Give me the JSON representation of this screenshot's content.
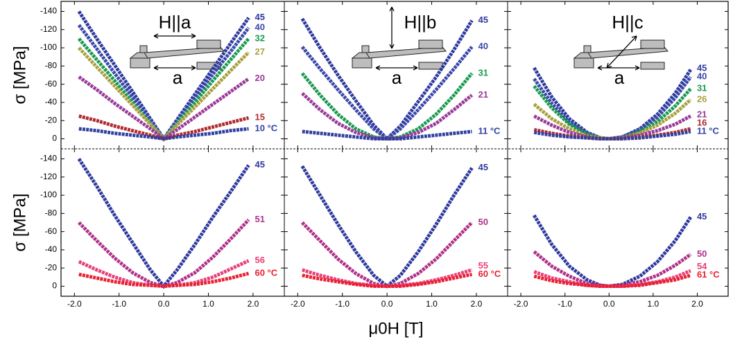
{
  "chart_data": [
    {
      "type": "line",
      "ylabel": "σ [MPa]",
      "annotations": [
        "H||a",
        "a"
      ],
      "xlim": [
        -2.3,
        2.7
      ],
      "ylim": [
        11,
        -151
      ],
      "xticks": [
        {
          "value": -2,
          "label": "-2.0"
        },
        {
          "value": -1,
          "label": "-1.0"
        },
        {
          "value": 0,
          "label": "0.0"
        },
        {
          "value": 1,
          "label": "1.0"
        },
        {
          "value": 2,
          "label": "2.0"
        }
      ],
      "yticks": [
        0,
        -20,
        -40,
        -60,
        -80,
        -100,
        -120,
        -140
      ],
      "show_xtick_labels": false,
      "show_ytick_labels": true,
      "x": [
        -1.9,
        -1.5,
        -1.1,
        -0.7,
        -0.3,
        0,
        0.3,
        0.7,
        1.1,
        1.5,
        1.9
      ],
      "series": [
        {
          "name": "45",
          "color": "#2e3a9e",
          "values": [
            -140,
            -110,
            -81,
            -52,
            -22,
            0,
            -21,
            -49,
            -77,
            -105,
            -133
          ]
        },
        {
          "name": "40",
          "color": "#3a48aa",
          "values": [
            -125,
            -99,
            -72,
            -46,
            -20,
            0,
            -19,
            -45,
            -71,
            -96,
            -122
          ]
        },
        {
          "name": "32",
          "color": "#1a9a50",
          "values": [
            -110,
            -87,
            -64,
            -40,
            -17,
            0,
            -17,
            -40,
            -64,
            -87,
            -110
          ]
        },
        {
          "name": "27",
          "color": "#a8a040",
          "values": [
            -100,
            -79,
            -58,
            -37,
            -16,
            0,
            -15,
            -35,
            -55,
            -75,
            -95
          ]
        },
        {
          "name": "20",
          "color": "#9a3a9a",
          "values": [
            -68,
            -54,
            -39,
            -25,
            -11,
            0,
            -10,
            -24,
            -38,
            -52,
            -66
          ]
        },
        {
          "name": "15",
          "color": "#b02a30",
          "values": [
            -25,
            -20,
            -14,
            -9,
            -4,
            0,
            -4,
            -8,
            -13,
            -18,
            -23
          ]
        },
        {
          "name": "10 °C",
          "color": "#3040a0",
          "values": [
            -11,
            -9,
            -6,
            -4,
            -2,
            0,
            -2,
            -4,
            -6,
            -9,
            -11
          ]
        }
      ]
    },
    {
      "type": "line",
      "annotations": [
        "H||b",
        "a"
      ],
      "xlim": [
        -2.3,
        2.7
      ],
      "ylim": [
        11,
        -151
      ],
      "xticks": [
        {
          "value": -2,
          "label": "-2.0"
        },
        {
          "value": -1,
          "label": "-1.0"
        },
        {
          "value": 0,
          "label": "0.0"
        },
        {
          "value": 1,
          "label": "1.0"
        },
        {
          "value": 2,
          "label": "2.0"
        }
      ],
      "yticks": [
        0,
        -20,
        -40,
        -60,
        -80,
        -100,
        -120,
        -140
      ],
      "show_xtick_labels": false,
      "show_ytick_labels": false,
      "x": [
        -1.9,
        -1.5,
        -1.1,
        -0.7,
        -0.3,
        0,
        0.3,
        0.7,
        1.1,
        1.5,
        1.9
      ],
      "series": [
        {
          "name": "45",
          "color": "#2e3a9e",
          "values": [
            -132,
            -100,
            -70,
            -42,
            -15,
            0,
            -14,
            -41,
            -68,
            -98,
            -130
          ]
        },
        {
          "name": "40",
          "color": "#3a48aa",
          "values": [
            -101,
            -77,
            -54,
            -32,
            -11,
            0,
            -11,
            -32,
            -54,
            -77,
            -101
          ]
        },
        {
          "name": "31",
          "color": "#1a9a50",
          "values": [
            -72,
            -48,
            -27,
            -11,
            -2,
            0,
            -2,
            -11,
            -27,
            -48,
            -72
          ]
        },
        {
          "name": "21",
          "color": "#9a3a9a",
          "values": [
            -50,
            -32,
            -17,
            -7,
            -1,
            0,
            -1,
            -7,
            -17,
            -32,
            -48
          ]
        },
        {
          "name": "11 °C",
          "color": "#3040a0",
          "values": [
            -8,
            -6,
            -4,
            -2,
            0,
            0,
            0,
            -2,
            -4,
            -6,
            -8
          ]
        }
      ]
    },
    {
      "type": "line",
      "annotations": [
        "H||c",
        "a"
      ],
      "xlim": [
        -2.3,
        2.7
      ],
      "ylim": [
        11,
        -151
      ],
      "xticks": [
        {
          "value": -2,
          "label": "-2.0"
        },
        {
          "value": -1,
          "label": "-1.0"
        },
        {
          "value": 0,
          "label": "0.0"
        },
        {
          "value": 1,
          "label": "1.0"
        },
        {
          "value": 2,
          "label": "2.0"
        }
      ],
      "yticks": [
        0,
        -20,
        -40,
        -60,
        -80,
        -100,
        -120,
        -140
      ],
      "show_xtick_labels": false,
      "show_ytick_labels": false,
      "x": [
        -1.7,
        -1.3,
        -0.9,
        -0.5,
        -0.2,
        0,
        0.3,
        0.7,
        1.1,
        1.5,
        1.85
      ],
      "series": [
        {
          "name": "45",
          "color": "#2e3a9e",
          "values": [
            -78,
            -46,
            -22,
            -7,
            -1,
            0,
            -2,
            -11,
            -27,
            -50,
            -76
          ]
        },
        {
          "name": "40",
          "color": "#3a48aa",
          "values": [
            -66,
            -39,
            -18,
            -6,
            -1,
            0,
            -2,
            -10,
            -24,
            -45,
            -68
          ]
        },
        {
          "name": "31",
          "color": "#1a9a50",
          "values": [
            -58,
            -34,
            -16,
            -5,
            -1,
            0,
            -1,
            -8,
            -19,
            -36,
            -55
          ]
        },
        {
          "name": "26",
          "color": "#a8a040",
          "values": [
            -38,
            -22,
            -11,
            -3,
            -1,
            0,
            -1,
            -6,
            -15,
            -28,
            -43
          ]
        },
        {
          "name": "21",
          "color": "#9a3a9a",
          "values": [
            -25,
            -15,
            -7,
            -2,
            0,
            0,
            -1,
            -4,
            -9,
            -16,
            -25
          ]
        },
        {
          "name": "16",
          "color": "#b02a30",
          "values": [
            -10,
            -6,
            -3,
            -1,
            0,
            0,
            0,
            -2,
            -4,
            -7,
            -11
          ]
        },
        {
          "name": "11 °C",
          "color": "#3040a0",
          "values": [
            -7,
            -4,
            -2,
            -1,
            0,
            0,
            0,
            -1,
            -3,
            -5,
            -8
          ]
        }
      ]
    },
    {
      "type": "line",
      "ylabel": "σ [MPa]",
      "xlim": [
        -2.3,
        2.7
      ],
      "ylim": [
        11,
        -151
      ],
      "xticks": [
        {
          "value": -2,
          "label": "-2.0"
        },
        {
          "value": -1,
          "label": "-1.0"
        },
        {
          "value": 0,
          "label": "0.0"
        },
        {
          "value": 1,
          "label": "1.0"
        },
        {
          "value": 2,
          "label": "2.0"
        }
      ],
      "yticks": [
        0,
        -20,
        -40,
        -60,
        -80,
        -100,
        -120,
        -140
      ],
      "show_xtick_labels": true,
      "show_ytick_labels": true,
      "x": [
        -1.9,
        -1.5,
        -1.1,
        -0.7,
        -0.3,
        0,
        0.3,
        0.7,
        1.1,
        1.5,
        1.9
      ],
      "series": [
        {
          "name": "45",
          "color": "#2e3a9e",
          "values": [
            -140,
            -110,
            -78,
            -48,
            -18,
            0,
            -18,
            -46,
            -76,
            -104,
            -133
          ]
        },
        {
          "name": "51",
          "color": "#b0308a",
          "values": [
            -70,
            -50,
            -31,
            -15,
            -4,
            0,
            -4,
            -15,
            -32,
            -52,
            -73
          ]
        },
        {
          "name": "56",
          "color": "#e8407a",
          "values": [
            -27,
            -18,
            -10,
            -4,
            -1,
            0,
            -1,
            -4,
            -10,
            -19,
            -28
          ]
        },
        {
          "name": "60 °C",
          "color": "#e82030",
          "values": [
            -13,
            -9,
            -5,
            -2,
            -1,
            0,
            -1,
            -2,
            -5,
            -9,
            -14
          ]
        }
      ]
    },
    {
      "type": "line",
      "xlabel": "μ0H [T]",
      "xlim": [
        -2.3,
        2.7
      ],
      "ylim": [
        11,
        -151
      ],
      "xticks": [
        {
          "value": -2,
          "label": "-2.0"
        },
        {
          "value": -1,
          "label": "-1.0"
        },
        {
          "value": 0,
          "label": "0.0"
        },
        {
          "value": 1,
          "label": "1.0"
        },
        {
          "value": 2,
          "label": "2.0"
        }
      ],
      "yticks": [
        0,
        -20,
        -40,
        -60,
        -80,
        -100,
        -120,
        -140
      ],
      "show_xtick_labels": true,
      "show_ytick_labels": false,
      "x": [
        -1.9,
        -1.5,
        -1.1,
        -0.7,
        -0.3,
        0,
        0.3,
        0.7,
        1.1,
        1.5,
        1.9
      ],
      "series": [
        {
          "name": "45",
          "color": "#2e3a9e",
          "values": [
            -132,
            -100,
            -68,
            -38,
            -12,
            0,
            -12,
            -38,
            -68,
            -100,
            -130
          ]
        },
        {
          "name": "50",
          "color": "#b0308a",
          "values": [
            -70,
            -50,
            -30,
            -14,
            -3,
            0,
            -3,
            -14,
            -30,
            -50,
            -70
          ]
        },
        {
          "name": "55",
          "color": "#e8407a",
          "values": [
            -18,
            -12,
            -7,
            -3,
            -1,
            0,
            -1,
            -3,
            -7,
            -12,
            -18
          ]
        },
        {
          "name": "60 °C",
          "color": "#e82030",
          "values": [
            -12,
            -8,
            -5,
            -2,
            0,
            0,
            0,
            -2,
            -5,
            -9,
            -13
          ]
        }
      ]
    },
    {
      "type": "line",
      "xlim": [
        -2.3,
        2.7
      ],
      "ylim": [
        11,
        -151
      ],
      "xticks": [
        {
          "value": -2,
          "label": "-2.0"
        },
        {
          "value": -1,
          "label": "-1.0"
        },
        {
          "value": 0,
          "label": "0.0"
        },
        {
          "value": 1,
          "label": "1.0"
        },
        {
          "value": 2,
          "label": "2.0"
        }
      ],
      "yticks": [
        0,
        -20,
        -40,
        -60,
        -80,
        -100,
        -120,
        -140
      ],
      "show_xtick_labels": true,
      "show_ytick_labels": false,
      "x": [
        -1.7,
        -1.3,
        -0.9,
        -0.5,
        -0.2,
        0,
        0.3,
        0.7,
        1.1,
        1.5,
        1.85
      ],
      "series": [
        {
          "name": "45",
          "color": "#2e3a9e",
          "values": [
            -78,
            -46,
            -22,
            -7,
            -1,
            0,
            -2,
            -11,
            -27,
            -50,
            -76
          ]
        },
        {
          "name": "50",
          "color": "#b0308a",
          "values": [
            -38,
            -22,
            -11,
            -3,
            -1,
            0,
            -1,
            -5,
            -12,
            -23,
            -35
          ]
        },
        {
          "name": "54",
          "color": "#e8407a",
          "values": [
            -16,
            -9,
            -5,
            -1,
            0,
            0,
            0,
            -2,
            -5,
            -10,
            -17
          ]
        },
        {
          "name": "61 °C",
          "color": "#e82030",
          "values": [
            -11,
            -6,
            -3,
            -1,
            0,
            0,
            0,
            -1,
            -4,
            -7,
            -12
          ]
        }
      ]
    }
  ]
}
